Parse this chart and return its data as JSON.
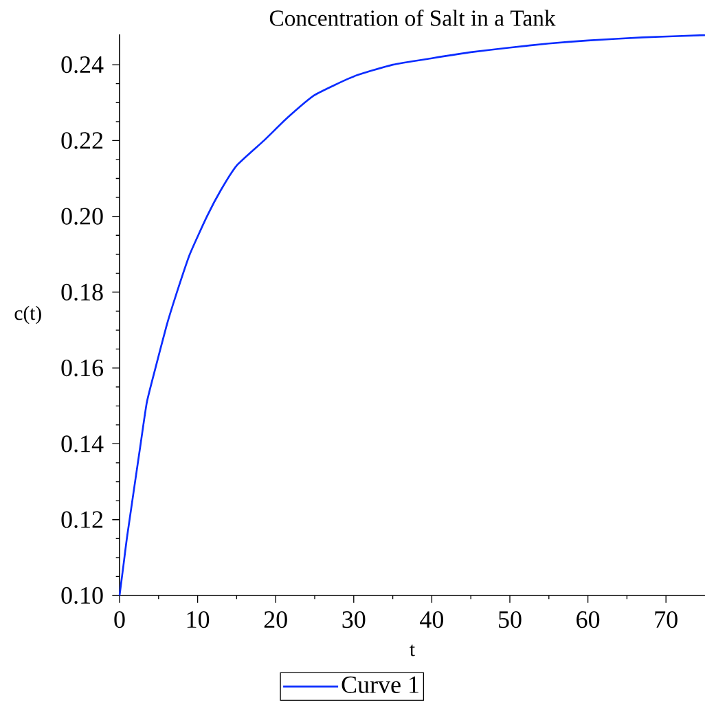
{
  "chart_data": {
    "type": "line",
    "title": "Concentration of Salt in a Tank",
    "xlabel": "t",
    "ylabel": "c(t)",
    "xlim": [
      0,
      75
    ],
    "ylim": [
      0.1,
      0.248
    ],
    "xticks": [
      0,
      10,
      20,
      30,
      40,
      50,
      60,
      70
    ],
    "yticks": [
      {
        "value": 0.1,
        "label": "0.10"
      },
      0.12,
      0.14,
      0.16,
      0.18,
      {
        "value": 0.2,
        "label": "0.20"
      },
      0.22,
      0.24
    ],
    "legend": "bottom",
    "grid": false,
    "series": [
      {
        "name": "Curve 1",
        "color": "#0a2cff",
        "x": [
          0,
          0.5,
          1,
          2.7,
          3.5,
          4.6,
          6,
          7.35,
          9,
          11.2,
          13,
          15,
          18.5,
          21.5,
          25,
          30,
          35,
          40,
          45,
          50,
          55,
          60,
          67,
          75
        ],
        "values": [
          0.1,
          0.108,
          0.116,
          0.14,
          0.151,
          0.16,
          0.171,
          0.18,
          0.19,
          0.2,
          0.207,
          0.2134,
          0.22,
          0.226,
          0.232,
          0.2369,
          0.24,
          0.2417,
          0.2433,
          0.2445,
          0.2456,
          0.2464,
          0.2472,
          0.2478
        ]
      }
    ]
  }
}
